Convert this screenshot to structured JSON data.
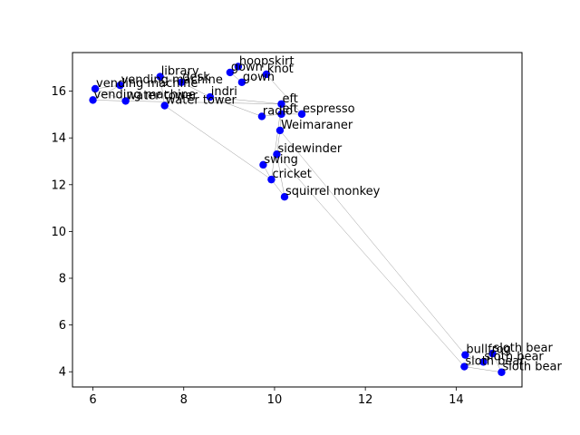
{
  "chart_data": {
    "type": "scatter",
    "title": "",
    "xlabel": "",
    "ylabel": "",
    "xlim": [
      5.55,
      15.45
    ],
    "ylim": [
      3.35,
      17.65
    ],
    "xticks": [
      6,
      8,
      10,
      12,
      14
    ],
    "yticks": [
      4,
      6,
      8,
      10,
      12,
      14,
      16
    ],
    "xtick_labels": [
      "6",
      "8",
      "10",
      "12",
      "14"
    ],
    "ytick_labels": [
      "4",
      "6",
      "8",
      "10",
      "12",
      "14",
      "16"
    ],
    "grid": false,
    "marker_color": "#0000ff",
    "line_color": "#999999",
    "points": [
      {
        "label": "hoopskirt",
        "x": 9.2,
        "y": 17.05
      },
      {
        "label": "gown",
        "x": 9.02,
        "y": 16.8
      },
      {
        "label": "knot",
        "x": 9.82,
        "y": 16.72
      },
      {
        "label": "gown",
        "x": 9.28,
        "y": 16.38
      },
      {
        "label": "library",
        "x": 7.48,
        "y": 16.62
      },
      {
        "label": "vending machine",
        "x": 6.6,
        "y": 16.25
      },
      {
        "label": "desk",
        "x": 7.95,
        "y": 16.38
      },
      {
        "label": "vending machine",
        "x": 6.05,
        "y": 16.1
      },
      {
        "label": "indri",
        "x": 8.58,
        "y": 15.75
      },
      {
        "label": "vending machine",
        "x": 6.0,
        "y": 15.62
      },
      {
        "label": "water tower",
        "x": 6.72,
        "y": 15.58
      },
      {
        "label": "water tower",
        "x": 7.58,
        "y": 15.38
      },
      {
        "label": "eft",
        "x": 10.15,
        "y": 15.45
      },
      {
        "label": "eft",
        "x": 10.15,
        "y": 15.02
      },
      {
        "label": "espresso",
        "x": 10.6,
        "y": 15.02
      },
      {
        "label": "radio",
        "x": 9.72,
        "y": 14.92
      },
      {
        "label": "Weimaraner",
        "x": 10.12,
        "y": 14.32
      },
      {
        "label": "sidewinder",
        "x": 10.05,
        "y": 13.3
      },
      {
        "label": "swing",
        "x": 9.75,
        "y": 12.85
      },
      {
        "label": "cricket",
        "x": 9.93,
        "y": 12.22
      },
      {
        "label": "squirrel monkey",
        "x": 10.22,
        "y": 11.48
      },
      {
        "label": "bullfrog",
        "x": 14.2,
        "y": 4.72
      },
      {
        "label": "sloth bear",
        "x": 14.8,
        "y": 4.78
      },
      {
        "label": "sloth bear",
        "x": 14.6,
        "y": 4.42
      },
      {
        "label": "sloth bear",
        "x": 14.18,
        "y": 4.22
      },
      {
        "label": "sloth bear",
        "x": 15.0,
        "y": 3.98
      }
    ],
    "edges": [
      [
        4,
        6
      ],
      [
        6,
        8
      ],
      [
        8,
        12
      ],
      [
        12,
        19
      ],
      [
        19,
        11
      ],
      [
        11,
        4
      ],
      [
        5,
        7
      ],
      [
        5,
        9
      ],
      [
        9,
        10
      ],
      [
        10,
        12
      ],
      [
        7,
        10
      ],
      [
        0,
        1
      ],
      [
        1,
        3
      ],
      [
        3,
        2
      ],
      [
        2,
        14
      ],
      [
        14,
        13
      ],
      [
        13,
        15
      ],
      [
        15,
        8
      ],
      [
        12,
        16
      ],
      [
        16,
        17
      ],
      [
        17,
        18
      ],
      [
        18,
        19
      ],
      [
        19,
        20
      ],
      [
        20,
        17
      ],
      [
        16,
        21
      ],
      [
        17,
        24
      ],
      [
        21,
        23
      ],
      [
        23,
        22
      ],
      [
        22,
        25
      ],
      [
        25,
        24
      ],
      [
        24,
        23
      ],
      [
        13,
        12
      ]
    ]
  }
}
